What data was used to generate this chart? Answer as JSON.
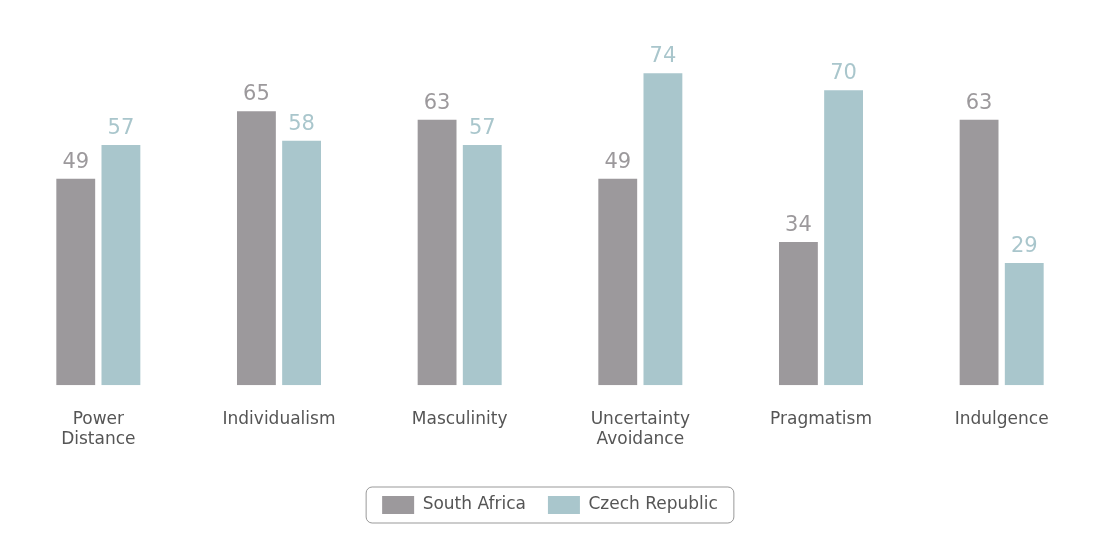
{
  "chart_data": {
    "type": "bar",
    "categories": [
      "Power Distance",
      "Individualism",
      "Masculinity",
      "Uncertainty Avoidance",
      "Pragmatism",
      "Indulgence"
    ],
    "series": [
      {
        "name": "South Africa",
        "color": "#9c999c",
        "values": [
          49,
          65,
          63,
          49,
          34,
          63
        ]
      },
      {
        "name": "Czech Republic",
        "color": "#a9c6cc",
        "values": [
          57,
          58,
          57,
          74,
          70,
          29
        ]
      }
    ],
    "data_labels": true,
    "grid": false,
    "legend": "bottom"
  }
}
